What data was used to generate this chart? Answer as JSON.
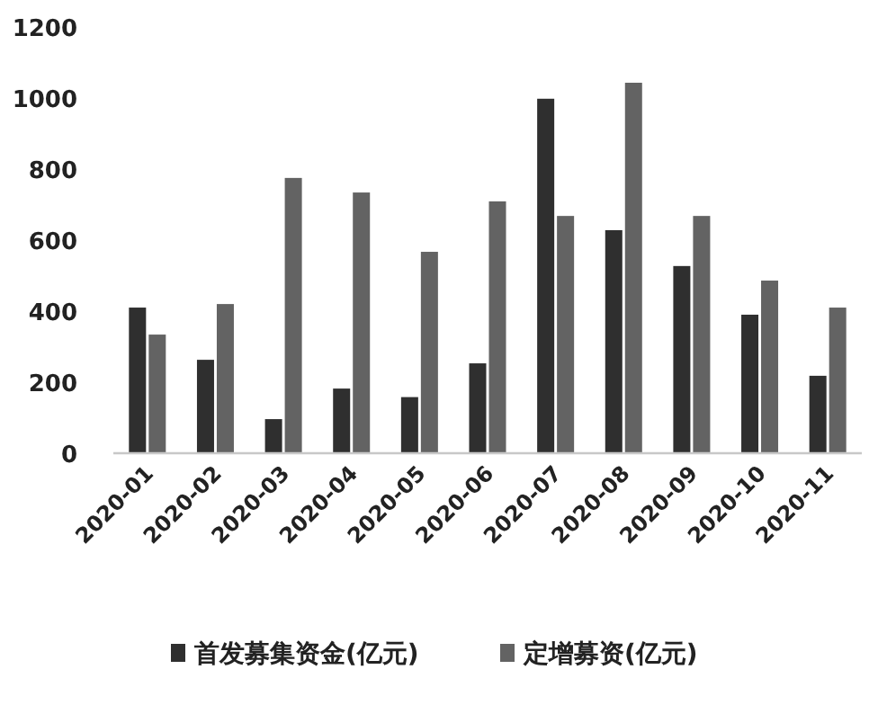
{
  "chart_data": {
    "type": "bar",
    "categories": [
      "2020-01",
      "2020-02",
      "2020-03",
      "2020-04",
      "2020-05",
      "2020-06",
      "2020-07",
      "2020-08",
      "2020-09",
      "2020-10",
      "2020-11"
    ],
    "series": [
      {
        "name": "首发募集资金(亿元)",
        "color": "#2f2f2f",
        "values": [
          410,
          263,
          96,
          182,
          158,
          253,
          998,
          628,
          527,
          390,
          218
        ]
      },
      {
        "name": "定增募资(亿元)",
        "color": "#636363",
        "values": [
          334,
          420,
          775,
          734,
          567,
          709,
          668,
          1043,
          668,
          486,
          410
        ]
      }
    ],
    "ylim": [
      0,
      1200
    ],
    "yticks": [
      0,
      200,
      400,
      600,
      800,
      1000,
      1200
    ],
    "grid": false,
    "legend": "bottom"
  }
}
